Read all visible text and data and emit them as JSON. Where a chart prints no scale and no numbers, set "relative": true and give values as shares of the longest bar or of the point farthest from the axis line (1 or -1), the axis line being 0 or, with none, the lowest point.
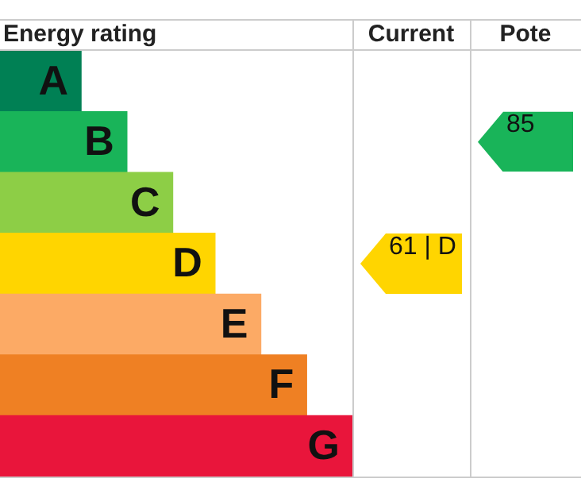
{
  "chart_data": {
    "type": "bar",
    "orientation": "horizontal",
    "relative": true,
    "title": "Energy rating",
    "categories": [
      "A",
      "B",
      "C",
      "D",
      "E",
      "F",
      "G"
    ],
    "values": [
      0.23,
      0.36,
      0.49,
      0.61,
      0.74,
      0.87,
      1
    ],
    "colors": [
      "#008054",
      "#19b459",
      "#8dce46",
      "#ffd500",
      "#fcaa65",
      "#ef8023",
      "#e9153b"
    ],
    "annotations": [
      "Current",
      "Pote",
      "61 | D",
      "85"
    ],
    "legend": false
  }
}
